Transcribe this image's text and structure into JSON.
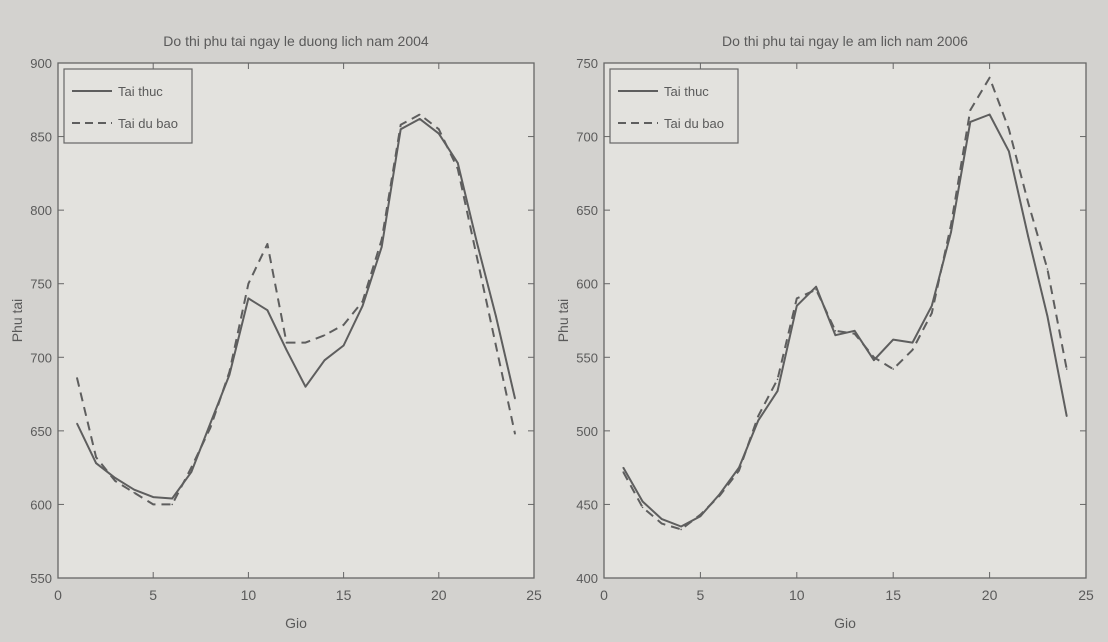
{
  "chart_data": [
    {
      "type": "line",
      "title": "Do thi phu tai ngay le duong lich nam 2004",
      "xlabel": "Gio",
      "ylabel": "Phu tai",
      "xlim": [
        0,
        25
      ],
      "ylim": [
        550,
        900
      ],
      "xticks": [
        0,
        5,
        10,
        15,
        20,
        25
      ],
      "yticks": [
        550,
        600,
        650,
        700,
        750,
        800,
        850,
        900
      ],
      "legend_position": "top-left",
      "grid": false,
      "x": [
        1,
        2,
        3,
        4,
        5,
        6,
        7,
        8,
        9,
        10,
        11,
        12,
        13,
        14,
        15,
        16,
        17,
        18,
        19,
        20,
        21,
        22,
        23,
        24
      ],
      "series": [
        {
          "name": "Tai thuc",
          "style": "solid",
          "values": [
            655,
            628,
            618,
            610,
            605,
            604,
            622,
            655,
            688,
            740,
            732,
            705,
            680,
            698,
            708,
            735,
            775,
            855,
            862,
            852,
            832,
            778,
            728,
            672
          ]
        },
        {
          "name": "Tai du bao",
          "style": "dashed",
          "values": [
            686,
            632,
            616,
            608,
            600,
            600,
            625,
            652,
            690,
            750,
            777,
            710,
            710,
            715,
            722,
            738,
            780,
            858,
            865,
            855,
            828,
            768,
            708,
            648
          ]
        }
      ]
    },
    {
      "type": "line",
      "title": "Do thi phu tai ngay le am lich nam 2006",
      "xlabel": "Gio",
      "ylabel": "Phu tai",
      "xlim": [
        0,
        25
      ],
      "ylim": [
        400,
        750
      ],
      "xticks": [
        0,
        5,
        10,
        15,
        20,
        25
      ],
      "yticks": [
        400,
        450,
        500,
        550,
        600,
        650,
        700,
        750
      ],
      "legend_position": "top-left",
      "grid": false,
      "x": [
        1,
        2,
        3,
        4,
        5,
        6,
        7,
        8,
        9,
        10,
        11,
        12,
        13,
        14,
        15,
        16,
        17,
        18,
        19,
        20,
        21,
        22,
        23,
        24
      ],
      "series": [
        {
          "name": "Tai thuc",
          "style": "solid",
          "values": [
            475,
            452,
            440,
            435,
            442,
            457,
            475,
            507,
            527,
            585,
            598,
            565,
            568,
            548,
            562,
            560,
            585,
            635,
            710,
            715,
            690,
            632,
            578,
            510
          ]
        },
        {
          "name": "Tai du bao",
          "style": "dashed",
          "values": [
            472,
            448,
            437,
            433,
            443,
            456,
            473,
            510,
            535,
            590,
            596,
            568,
            566,
            550,
            542,
            555,
            580,
            640,
            718,
            740,
            705,
            655,
            610,
            542
          ]
        }
      ]
    }
  ],
  "colors": {
    "background": "#d3d2cf",
    "plot_background": "#e3e2de",
    "line": "#5e5e5e",
    "axis": "#666666",
    "text": "#5a5a5a"
  }
}
